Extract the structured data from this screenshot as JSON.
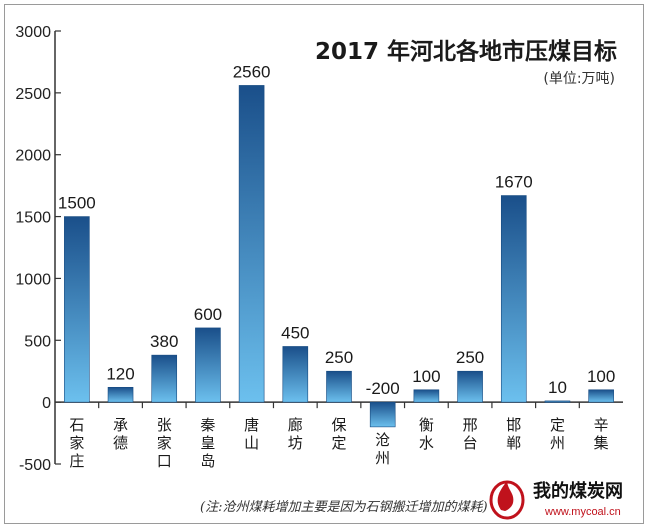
{
  "chart_data": {
    "type": "bar",
    "title": "2017 年河北各地市压煤目标",
    "subtitle": "(单位:万吨)",
    "categories": [
      "石家庄",
      "承德",
      "张家口",
      "秦皇岛",
      "唐山",
      "廊坊",
      "保定",
      "沧州",
      "衡水",
      "邢台",
      "邯郸",
      "定州",
      "辛集"
    ],
    "values": [
      1500,
      120,
      380,
      600,
      2560,
      450,
      250,
      -200,
      100,
      250,
      1670,
      10,
      100
    ],
    "value_labels": [
      "1500",
      "120",
      "380",
      "600",
      "2560",
      "450",
      "250",
      "-200",
      "100",
      "250",
      "1670",
      "10",
      "100"
    ],
    "yticks": [
      "3000",
      "2500",
      "2000",
      "1500",
      "1000",
      "500",
      "0",
      "-500"
    ],
    "ylim": [
      -500,
      3000
    ],
    "xlabel": "",
    "ylabel": "",
    "grid": false,
    "colors": {
      "bar_top": "#1a4f8a",
      "bar_bottom": "#6cc0ee",
      "axis": "#333333"
    },
    "note": "(注:沧州煤耗增加主要是因为石钢搬迁增加的煤耗)"
  },
  "watermark": {
    "brand": "我的煤炭网",
    "site": "www.mycoal.cn"
  }
}
